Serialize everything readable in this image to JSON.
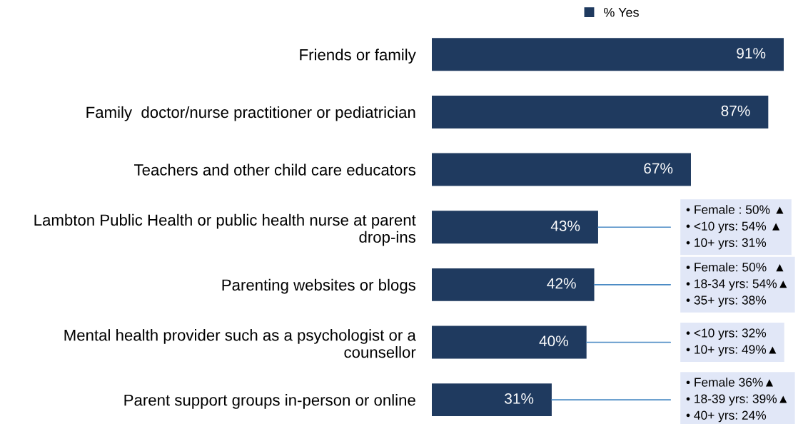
{
  "chart_data": {
    "type": "bar",
    "orientation": "horizontal",
    "legend": "top",
    "categories": [
      "Friends or family",
      "Family  doctor/nurse practitioner or pediatrician",
      "Teachers and other child care educators",
      "Lambton Public Health or public health nurse at parent\ndrop-ins",
      "Parenting websites or blogs",
      "Mental health provider such as a psychologist or a\ncounsellor",
      "Parent support groups in-person or online"
    ],
    "series": [
      {
        "name": "% Yes",
        "color": "#1f3a5f",
        "values": [
          91,
          87,
          67,
          43,
          42,
          40,
          31
        ],
        "value_labels": [
          "91%",
          "87%",
          "67%",
          "43%",
          "42%",
          "40%",
          "31%"
        ]
      }
    ],
    "annotations": [
      {
        "text": "• Female : 50% ▲\n• <10 yrs: 54% ▲\n• 10+ yrs: 31%",
        "x": 43,
        "y": "Lambton Public Health or public health nurse at parent\ndrop-ins"
      },
      {
        "text": "• Female: 50%  ▲\n• 18-34 yrs: 54%▲\n• 35+ yrs: 38%",
        "x": 42,
        "y": "Parenting websites or blogs"
      },
      {
        "text": "• <10 yrs: 32%\n• 10+ yrs: 49%▲",
        "x": 40,
        "y": "Mental health provider such as a psychologist or a\ncounsellor"
      },
      {
        "text": "• Female 36%▲\n• 18-39 yrs: 39%▲\n• 40+ yrs: 24%",
        "x": 31,
        "y": "Parent support groups in-person or online"
      }
    ]
  }
}
